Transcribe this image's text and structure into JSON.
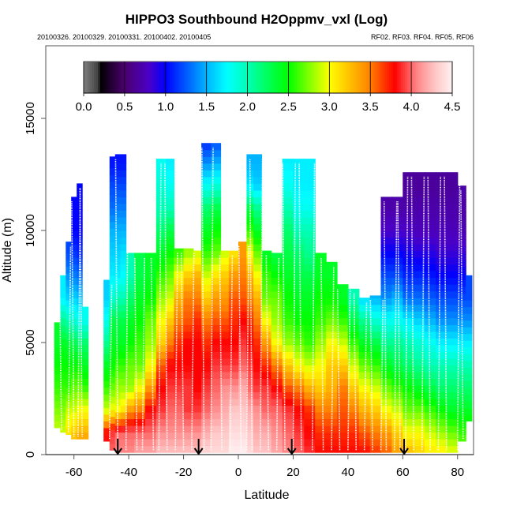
{
  "chart_data": {
    "type": "heatmap",
    "title": "HIPPO3 Southbound H2Oppmv_vxl (Log)",
    "subtitle_left": "20100326. 20100329. 20100331. 20100402. 20100405",
    "subtitle_right": "RF02. RF03. RF04. RF05. RF06",
    "xlabel": "Latitude",
    "ylabel": "Altitude (m)",
    "xlim": [
      -70,
      87
    ],
    "ylim": [
      0,
      18000
    ],
    "x_ticks": [
      -60,
      -40,
      -20,
      0,
      20,
      40,
      60,
      80
    ],
    "x_tick_labels": [
      "-60",
      "-40",
      "-20",
      "0",
      "20",
      "40",
      "60",
      "80"
    ],
    "y_ticks": [
      0,
      5000,
      10000,
      15000
    ],
    "y_tick_labels": [
      "0",
      "5000",
      "10000",
      "15000"
    ],
    "colorbar": {
      "range": [
        0,
        4.5
      ],
      "ticks": [
        0.0,
        0.5,
        1.0,
        1.5,
        2.0,
        2.5,
        3.0,
        3.5,
        4.0,
        4.5
      ],
      "tick_labels": [
        "0.0",
        "0.5",
        "1.0",
        "1.5",
        "2.0",
        "2.5",
        "3.0",
        "3.5",
        "4.0",
        "4.5"
      ],
      "stops": [
        {
          "v": 0.0,
          "color": "#808080"
        },
        {
          "v": 0.18,
          "color": "#404040"
        },
        {
          "v": 0.2,
          "color": "#000000"
        },
        {
          "v": 0.5,
          "color": "#4b006e"
        },
        {
          "v": 0.8,
          "color": "#4b00c8"
        },
        {
          "v": 1.0,
          "color": "#0000ff"
        },
        {
          "v": 1.5,
          "color": "#00b4ff"
        },
        {
          "v": 1.75,
          "color": "#00ffff"
        },
        {
          "v": 2.0,
          "color": "#00ffb4"
        },
        {
          "v": 2.5,
          "color": "#00ff00"
        },
        {
          "v": 3.0,
          "color": "#ffff00"
        },
        {
          "v": 3.5,
          "color": "#ff8000"
        },
        {
          "v": 3.8,
          "color": "#ff0000"
        },
        {
          "v": 3.95,
          "color": "#ff5050"
        },
        {
          "v": 4.1,
          "color": "#ff9090"
        },
        {
          "v": 4.3,
          "color": "#ffc8c8"
        },
        {
          "v": 4.5,
          "color": "#fff0f0"
        }
      ]
    },
    "flight_markers_lat": [
      -44,
      -14.5,
      19.5,
      60.5
    ],
    "altitude_levels": [
      0,
      1000,
      2000,
      3000,
      4000,
      5000,
      6000,
      7000,
      8000,
      9000,
      10000,
      11000,
      12000,
      13000,
      14000
    ],
    "columns": [
      {
        "lat": -66,
        "bottom": 1200,
        "top": 5900,
        "values": [
          2.9,
          2.9,
          2.75,
          2.6,
          2.5,
          2.4,
          null,
          null,
          null,
          null,
          null,
          null,
          null,
          null,
          null
        ]
      },
      {
        "lat": -64,
        "bottom": 1000,
        "top": 8000,
        "values": [
          2.9,
          2.9,
          2.75,
          2.6,
          2.5,
          2.4,
          2.1,
          1.7,
          null,
          null,
          null,
          null,
          null,
          null,
          null
        ]
      },
      {
        "lat": -62,
        "bottom": 900,
        "top": 9500,
        "values": [
          3.2,
          3.1,
          2.9,
          2.6,
          2.5,
          2.35,
          2.0,
          1.6,
          1.4,
          1.2,
          null,
          null,
          null,
          null,
          null
        ]
      },
      {
        "lat": -60,
        "bottom": 700,
        "top": 11500,
        "values": [
          3.4,
          3.2,
          2.9,
          2.7,
          2.5,
          2.3,
          1.9,
          1.6,
          1.35,
          1.15,
          1.0,
          1.0,
          null,
          null,
          null
        ]
      },
      {
        "lat": -58,
        "bottom": 700,
        "top": 12100,
        "values": [
          3.5,
          3.3,
          3.0,
          2.7,
          2.5,
          2.2,
          1.8,
          1.55,
          1.3,
          1.1,
          1.0,
          1.0,
          1.0,
          null,
          null
        ]
      },
      {
        "lat": -56,
        "bottom": 700,
        "top": 6600,
        "values": [
          3.5,
          3.3,
          3.0,
          2.6,
          2.4,
          2.2,
          1.8,
          null,
          null,
          null,
          null,
          null,
          null,
          null,
          null
        ]
      },
      {
        "lat": -48,
        "bottom": 600,
        "top": 7800,
        "values": [
          3.9,
          3.8,
          2.9,
          2.6,
          2.4,
          2.1,
          1.8,
          1.6,
          null,
          null,
          null,
          null,
          null,
          null,
          null
        ]
      },
      {
        "lat": -46,
        "bottom": 200,
        "top": 13300,
        "values": [
          4.0,
          3.9,
          3.0,
          2.7,
          2.5,
          2.4,
          2.3,
          1.9,
          1.7,
          1.6,
          1.5,
          1.3,
          1.2,
          1.05,
          null
        ]
      },
      {
        "lat": -44,
        "bottom": 100,
        "top": 13400,
        "values": [
          4.1,
          4.0,
          3.0,
          2.8,
          2.6,
          2.4,
          2.3,
          2.0,
          1.7,
          1.6,
          1.5,
          1.35,
          1.2,
          1.05,
          null
        ]
      },
      {
        "lat": -42,
        "bottom": 100,
        "top": 13400,
        "values": [
          4.1,
          4.0,
          3.1,
          2.8,
          2.6,
          2.4,
          2.3,
          2.0,
          1.75,
          1.65,
          1.5,
          1.35,
          1.2,
          1.05,
          null
        ]
      },
      {
        "lat": -40,
        "bottom": 100,
        "top": 9000,
        "values": [
          4.1,
          4.0,
          3.4,
          2.8,
          2.7,
          2.5,
          2.4,
          2.2,
          2.0,
          null,
          null,
          null,
          null,
          null,
          null
        ]
      },
      {
        "lat": -36,
        "bottom": 100,
        "top": 9000,
        "values": [
          4.2,
          4.0,
          3.5,
          3.0,
          2.7,
          2.6,
          2.5,
          2.4,
          2.3,
          null,
          null,
          null,
          null,
          null,
          null
        ]
      },
      {
        "lat": -32,
        "bottom": 100,
        "top": 9000,
        "values": [
          4.2,
          4.0,
          3.8,
          3.4,
          3.0,
          2.8,
          2.7,
          2.5,
          2.4,
          null,
          null,
          null,
          null,
          null,
          null
        ]
      },
      {
        "lat": -28,
        "bottom": 100,
        "top": 13200,
        "values": [
          4.3,
          4.1,
          3.9,
          3.8,
          3.6,
          3.2,
          3.0,
          2.8,
          2.6,
          2.4,
          2.2,
          2.0,
          1.9,
          1.8,
          null
        ]
      },
      {
        "lat": -25,
        "bottom": 100,
        "top": 13200,
        "values": [
          4.3,
          4.1,
          4.0,
          3.9,
          3.8,
          3.5,
          3.2,
          2.9,
          2.7,
          2.5,
          2.3,
          2.0,
          1.8,
          1.7,
          null
        ]
      },
      {
        "lat": -22,
        "bottom": 100,
        "top": 9200,
        "values": [
          4.3,
          4.1,
          4.0,
          3.9,
          3.8,
          3.7,
          3.5,
          3.3,
          3.0,
          2.6,
          null,
          null,
          null,
          null,
          null
        ]
      },
      {
        "lat": -18,
        "bottom": 100,
        "top": 9200,
        "values": [
          4.3,
          4.1,
          3.9,
          3.9,
          3.8,
          3.8,
          3.6,
          3.5,
          3.2,
          2.8,
          null,
          null,
          null,
          null,
          null
        ]
      },
      {
        "lat": -15,
        "bottom": 100,
        "top": 9100,
        "values": [
          4.3,
          4.1,
          3.9,
          3.8,
          3.8,
          3.8,
          3.7,
          3.5,
          3.3,
          2.9,
          null,
          null,
          null,
          null,
          null
        ]
      },
      {
        "lat": -12,
        "bottom": 100,
        "top": 13900,
        "values": [
          4.4,
          4.2,
          4.0,
          3.9,
          3.8,
          3.7,
          3.5,
          3.2,
          2.9,
          2.6,
          2.4,
          2.2,
          1.8,
          1.4,
          1.1
        ]
      },
      {
        "lat": -8,
        "bottom": 100,
        "top": 13900,
        "values": [
          4.4,
          4.3,
          4.1,
          4.0,
          3.9,
          3.8,
          3.6,
          3.4,
          3.1,
          2.7,
          2.5,
          2.3,
          1.9,
          1.5,
          1.2
        ]
      },
      {
        "lat": -5,
        "bottom": 100,
        "top": 9100,
        "values": [
          4.4,
          4.3,
          4.2,
          4.1,
          3.9,
          3.8,
          3.6,
          3.4,
          3.2,
          2.9,
          null,
          null,
          null,
          null,
          null
        ]
      },
      {
        "lat": -2,
        "bottom": 100,
        "top": 9100,
        "values": [
          4.5,
          4.4,
          4.3,
          4.1,
          3.9,
          3.8,
          3.7,
          3.6,
          3.4,
          3.1,
          null,
          null,
          null,
          null,
          null
        ]
      },
      {
        "lat": 2,
        "bottom": 100,
        "top": 9500,
        "values": [
          4.5,
          4.4,
          4.3,
          4.2,
          4.0,
          3.9,
          3.8,
          3.6,
          3.5,
          3.4,
          null,
          null,
          null,
          null,
          null
        ]
      },
      {
        "lat": 4,
        "bottom": 100,
        "top": 13400,
        "values": [
          4.4,
          4.3,
          4.2,
          4.0,
          3.9,
          3.8,
          3.7,
          3.5,
          3.3,
          3.0,
          2.6,
          2.3,
          1.7,
          1.5,
          null
        ]
      },
      {
        "lat": 7,
        "bottom": 100,
        "top": 13400,
        "values": [
          4.3,
          4.2,
          4.1,
          3.9,
          3.8,
          3.7,
          3.5,
          3.3,
          3.0,
          2.7,
          2.4,
          2.1,
          1.6,
          1.5,
          null
        ]
      },
      {
        "lat": 10,
        "bottom": 100,
        "top": 9100,
        "values": [
          4.3,
          4.2,
          4.0,
          3.9,
          3.7,
          3.4,
          3.0,
          2.7,
          2.6,
          2.4,
          null,
          null,
          null,
          null,
          null
        ]
      },
      {
        "lat": 14,
        "bottom": 100,
        "top": 9000,
        "values": [
          4.2,
          4.1,
          4.0,
          3.8,
          3.5,
          3.0,
          2.8,
          2.7,
          2.5,
          2.3,
          null,
          null,
          null,
          null,
          null
        ]
      },
      {
        "lat": 18,
        "bottom": 100,
        "top": 13200,
        "values": [
          4.1,
          4.0,
          3.9,
          3.6,
          3.2,
          2.8,
          2.6,
          2.5,
          2.4,
          2.3,
          2.2,
          2.0,
          1.8,
          1.7,
          null
        ]
      },
      {
        "lat": 22,
        "bottom": 100,
        "top": 13200,
        "values": [
          4.0,
          3.9,
          3.8,
          3.5,
          3.0,
          2.7,
          2.5,
          2.4,
          2.3,
          2.2,
          2.0,
          1.8,
          1.7,
          1.7,
          null
        ]
      },
      {
        "lat": 26,
        "bottom": 100,
        "top": 13200,
        "values": [
          3.9,
          3.8,
          3.7,
          3.3,
          2.9,
          2.6,
          2.5,
          2.4,
          2.3,
          2.1,
          2.0,
          1.8,
          1.7,
          1.7,
          null
        ]
      },
      {
        "lat": 30,
        "bottom": 100,
        "top": 9000,
        "values": [
          3.8,
          3.7,
          3.5,
          3.2,
          3.0,
          2.8,
          2.6,
          2.5,
          2.4,
          null,
          null,
          null,
          null,
          null,
          null
        ]
      },
      {
        "lat": 34,
        "bottom": 100,
        "top": 8600,
        "values": [
          3.8,
          3.7,
          3.5,
          3.3,
          3.2,
          3.0,
          2.7,
          2.5,
          2.4,
          null,
          null,
          null,
          null,
          null,
          null
        ]
      },
      {
        "lat": 38,
        "bottom": 100,
        "top": 7600,
        "values": [
          3.8,
          3.7,
          3.6,
          3.5,
          3.2,
          2.9,
          2.6,
          2.4,
          null,
          null,
          null,
          null,
          null,
          null,
          null
        ]
      },
      {
        "lat": 42,
        "bottom": 100,
        "top": 7400,
        "values": [
          3.8,
          3.7,
          3.5,
          3.2,
          2.9,
          2.6,
          2.3,
          2.0,
          null,
          null,
          null,
          null,
          null,
          null,
          null
        ]
      },
      {
        "lat": 46,
        "bottom": 100,
        "top": 7000,
        "values": [
          3.8,
          3.6,
          3.3,
          3.0,
          2.7,
          2.4,
          2.1,
          1.6,
          null,
          null,
          null,
          null,
          null,
          null,
          null
        ]
      },
      {
        "lat": 50,
        "bottom": 100,
        "top": 7100,
        "values": [
          3.7,
          3.5,
          3.2,
          2.9,
          2.6,
          2.3,
          1.9,
          1.5,
          null,
          null,
          null,
          null,
          null,
          null,
          null
        ]
      },
      {
        "lat": 54,
        "bottom": 100,
        "top": 11500,
        "values": [
          3.6,
          3.4,
          3.0,
          2.7,
          2.4,
          2.1,
          1.8,
          1.4,
          1.2,
          1.0,
          0.8,
          0.7,
          null,
          null,
          null
        ]
      },
      {
        "lat": 58,
        "bottom": 100,
        "top": 11500,
        "values": [
          3.4,
          3.2,
          2.9,
          2.6,
          2.3,
          2.1,
          1.8,
          1.5,
          1.2,
          1.0,
          0.8,
          0.7,
          null,
          null,
          null
        ]
      },
      {
        "lat": 62,
        "bottom": 100,
        "top": 12600,
        "values": [
          3.3,
          3.0,
          2.7,
          2.5,
          2.2,
          2.0,
          1.7,
          1.3,
          1.1,
          0.95,
          0.8,
          0.7,
          0.65,
          null,
          null
        ]
      },
      {
        "lat": 66,
        "bottom": 100,
        "top": 12600,
        "values": [
          3.2,
          3.0,
          2.7,
          2.4,
          2.1,
          1.9,
          1.6,
          1.3,
          1.1,
          0.9,
          0.75,
          0.7,
          0.65,
          null,
          null
        ]
      },
      {
        "lat": 70,
        "bottom": 100,
        "top": 12600,
        "values": [
          3.1,
          2.9,
          2.6,
          2.3,
          2.0,
          1.8,
          1.5,
          1.25,
          1.05,
          0.9,
          0.75,
          0.7,
          0.65,
          null,
          null
        ]
      },
      {
        "lat": 74,
        "bottom": 100,
        "top": 12600,
        "values": [
          3.1,
          2.8,
          2.5,
          2.2,
          2.0,
          1.7,
          1.4,
          1.2,
          1.0,
          0.85,
          0.75,
          0.7,
          0.65,
          null,
          null
        ]
      },
      {
        "lat": 78,
        "bottom": 100,
        "top": 12600,
        "values": [
          3.0,
          2.7,
          2.4,
          2.2,
          2.0,
          1.7,
          1.4,
          1.2,
          1.0,
          0.85,
          0.75,
          0.7,
          0.65,
          null,
          null
        ]
      },
      {
        "lat": 82,
        "bottom": 600,
        "top": 12000,
        "values": [
          2.8,
          2.6,
          2.4,
          2.2,
          2.0,
          1.7,
          1.4,
          1.2,
          1.0,
          0.85,
          0.75,
          0.7,
          null,
          null,
          null
        ]
      },
      {
        "lat": 84,
        "bottom": 1500,
        "top": 8000,
        "values": [
          null,
          2.6,
          2.4,
          2.2,
          2.0,
          1.7,
          1.4,
          1.2,
          null,
          null,
          null,
          null,
          null,
          null,
          null
        ]
      }
    ],
    "flight_track_lats": [
      -64.5,
      -62,
      -60,
      -58.5,
      -57,
      -47,
      -44,
      -41,
      -37,
      -35,
      -31,
      -29,
      -26,
      -23,
      -20,
      -17,
      -12.5,
      -10,
      -6,
      -3,
      1,
      3,
      5,
      8,
      11,
      14,
      17,
      20,
      23,
      27,
      31,
      34,
      37,
      40,
      43,
      46,
      49,
      52,
      54,
      57,
      59,
      61,
      64,
      67,
      70,
      73,
      76,
      80,
      82
    ]
  }
}
